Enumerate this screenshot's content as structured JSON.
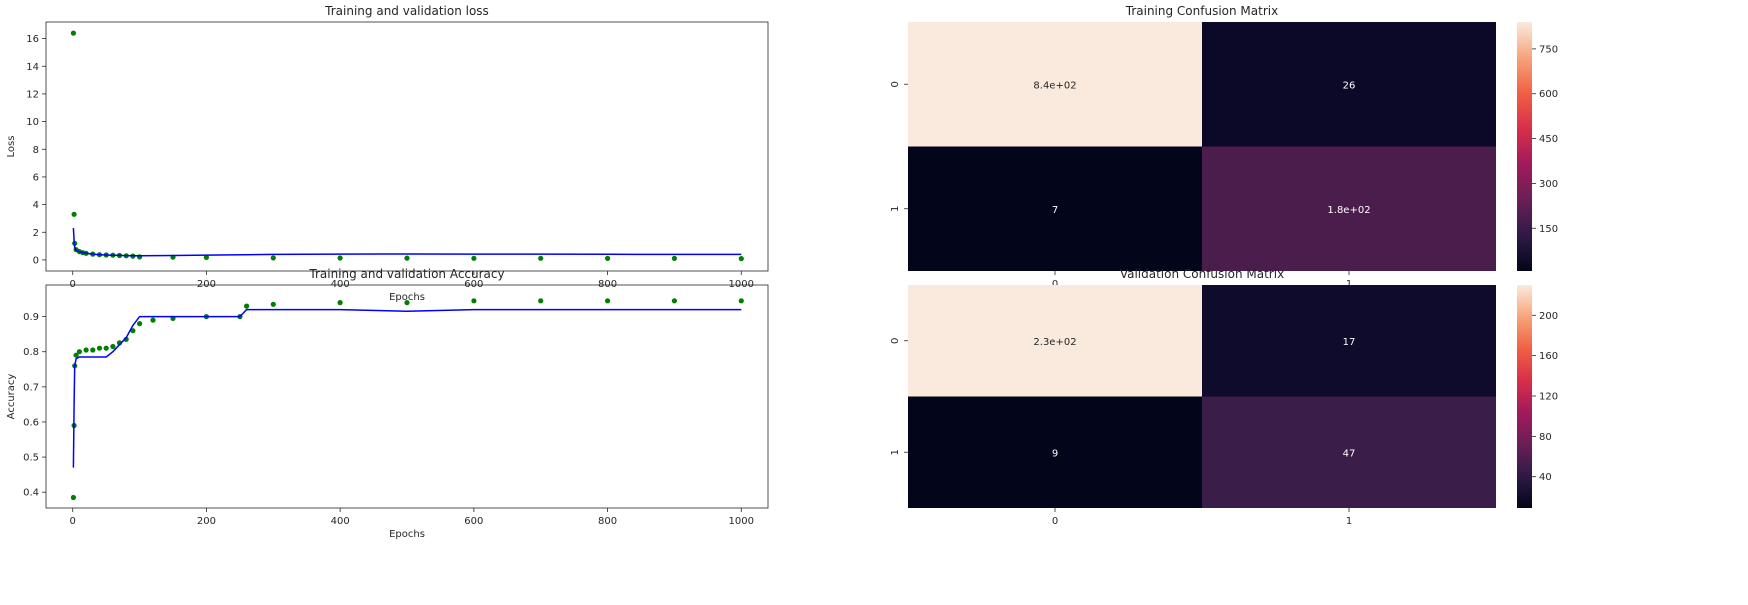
{
  "chart_data": [
    {
      "type": "line",
      "title": "Training and validation loss",
      "xlabel": "Epochs",
      "ylabel": "Loss",
      "xlim": [
        -40,
        1040
      ],
      "ylim": [
        -0.8,
        17.2
      ],
      "xticks": [
        0,
        200,
        400,
        600,
        800,
        1000
      ],
      "yticks": [
        0,
        2,
        4,
        6,
        8,
        10,
        12,
        14,
        16
      ],
      "grid": false,
      "series": [
        {
          "style": "dots",
          "color": "#008000",
          "x": [
            1,
            2,
            3,
            5,
            10,
            15,
            20,
            30,
            40,
            50,
            60,
            70,
            80,
            90,
            100,
            150,
            200,
            300,
            400,
            500,
            600,
            700,
            800,
            900,
            1000
          ],
          "y": [
            16.4,
            3.3,
            1.2,
            0.75,
            0.6,
            0.52,
            0.48,
            0.42,
            0.38,
            0.36,
            0.34,
            0.32,
            0.3,
            0.28,
            0.22,
            0.2,
            0.18,
            0.15,
            0.14,
            0.13,
            0.12,
            0.12,
            0.11,
            0.11,
            0.1
          ]
        },
        {
          "style": "line",
          "color": "#0000ff",
          "x": [
            1,
            2,
            3,
            5,
            10,
            15,
            20,
            30,
            40,
            50,
            60,
            70,
            80,
            90,
            100,
            150,
            200,
            300,
            400,
            500,
            600,
            700,
            800,
            900,
            1000
          ],
          "y": [
            2.3,
            1.4,
            0.9,
            0.7,
            0.6,
            0.52,
            0.48,
            0.42,
            0.38,
            0.36,
            0.34,
            0.33,
            0.31,
            0.3,
            0.3,
            0.32,
            0.35,
            0.4,
            0.42,
            0.43,
            0.42,
            0.42,
            0.41,
            0.4,
            0.4
          ]
        }
      ]
    },
    {
      "type": "line",
      "title": "Training and validation Accuracy",
      "xlabel": "Epochs",
      "ylabel": "Accuracy",
      "xlim": [
        -40,
        1040
      ],
      "ylim": [
        0.355,
        0.99
      ],
      "xticks": [
        0,
        200,
        400,
        600,
        800,
        1000
      ],
      "yticks": [
        0.4,
        0.5,
        0.6,
        0.7,
        0.8,
        0.9
      ],
      "grid": false,
      "series": [
        {
          "style": "dots",
          "color": "#008000",
          "x": [
            1,
            2,
            3,
            5,
            10,
            20,
            30,
            40,
            50,
            60,
            70,
            80,
            90,
            100,
            120,
            150,
            200,
            250,
            260,
            300,
            400,
            500,
            600,
            700,
            800,
            900,
            1000
          ],
          "y": [
            0.385,
            0.59,
            0.76,
            0.79,
            0.8,
            0.805,
            0.805,
            0.81,
            0.81,
            0.815,
            0.825,
            0.835,
            0.86,
            0.88,
            0.89,
            0.895,
            0.9,
            0.9,
            0.93,
            0.935,
            0.94,
            0.94,
            0.945,
            0.945,
            0.945,
            0.945,
            0.945
          ]
        },
        {
          "style": "line",
          "color": "#0000ff",
          "x": [
            1,
            2,
            3,
            5,
            10,
            20,
            30,
            40,
            50,
            60,
            70,
            80,
            90,
            100,
            120,
            150,
            200,
            250,
            260,
            300,
            400,
            500,
            600,
            700,
            800,
            900,
            1000
          ],
          "y": [
            0.47,
            0.65,
            0.76,
            0.78,
            0.785,
            0.785,
            0.785,
            0.785,
            0.785,
            0.8,
            0.82,
            0.84,
            0.875,
            0.9,
            0.9,
            0.9,
            0.9,
            0.9,
            0.92,
            0.92,
            0.92,
            0.915,
            0.92,
            0.92,
            0.92,
            0.92,
            0.92
          ]
        }
      ]
    },
    {
      "type": "heatmap",
      "title": "Training Confusion Matrix",
      "x_tick_labels": [
        "0",
        "1"
      ],
      "y_tick_labels": [
        "0",
        "1"
      ],
      "cells": [
        [
          "8.4e+02",
          "26"
        ],
        [
          "7",
          "1.8e+02"
        ]
      ],
      "values": [
        [
          840,
          26
        ],
        [
          7,
          180
        ]
      ],
      "colorbar_ticks": [
        150,
        300,
        450,
        600,
        750
      ],
      "colorbar_range": [
        7,
        840
      ],
      "cell_colors": [
        [
          "#faeadd",
          "#0c0828"
        ],
        [
          "#03051a",
          "#4a1d4d"
        ]
      ],
      "text_colors": [
        [
          "#262626",
          "#ffffff"
        ],
        [
          "#ffffff",
          "#ffffff"
        ]
      ],
      "colorbar_gradient": [
        "#03051a",
        "#2e1a45",
        "#6a1f56",
        "#a11a5b",
        "#d72f49",
        "#f06043",
        "#f6a47b",
        "#faeadd"
      ]
    },
    {
      "type": "heatmap",
      "title": "Validation Confusion Matrix",
      "x_tick_labels": [
        "0",
        "1"
      ],
      "y_tick_labels": [
        "0",
        "1"
      ],
      "cells": [
        [
          "2.3e+02",
          "17"
        ],
        [
          "9",
          "47"
        ]
      ],
      "values": [
        [
          230,
          17
        ],
        [
          9,
          47
        ]
      ],
      "colorbar_ticks": [
        40,
        80,
        120,
        160,
        200
      ],
      "colorbar_range": [
        9,
        230
      ],
      "cell_colors": [
        [
          "#faeadd",
          "#0f0b2c"
        ],
        [
          "#03051a",
          "#3b1d49"
        ]
      ],
      "text_colors": [
        [
          "#262626",
          "#ffffff"
        ],
        [
          "#ffffff",
          "#ffffff"
        ]
      ],
      "colorbar_gradient": [
        "#03051a",
        "#2e1a45",
        "#6a1f56",
        "#a11a5b",
        "#d72f49",
        "#f06043",
        "#f6a47b",
        "#faeadd"
      ]
    }
  ]
}
